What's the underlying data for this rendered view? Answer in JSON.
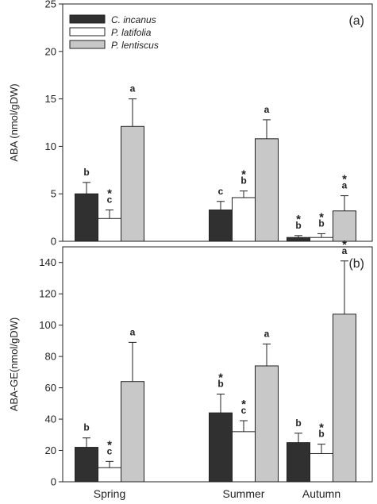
{
  "chart_data": [
    {
      "type": "bar",
      "panel_label": "(a)",
      "ylabel": "ABA (nmol/gDW)",
      "ylim": [
        0,
        25
      ],
      "yticks": [
        0,
        5,
        10,
        15,
        20,
        25
      ],
      "categories": [
        "Spring",
        "Summer",
        "Autumn"
      ],
      "show_category_labels": false,
      "legend": "top-left",
      "series": [
        {
          "name": "C. incanus",
          "color": "#303030",
          "values": [
            5.0,
            3.3,
            0.4
          ],
          "errors": [
            1.2,
            0.9,
            0.2
          ],
          "letters": [
            "b",
            "c",
            "b"
          ],
          "stars": [
            false,
            false,
            true
          ]
        },
        {
          "name": "P. latifolia",
          "color": "#ffffff",
          "values": [
            2.4,
            4.6,
            0.4
          ],
          "errors": [
            0.9,
            0.7,
            0.4
          ],
          "letters": [
            "c",
            "b",
            "b"
          ],
          "stars": [
            true,
            true,
            true
          ]
        },
        {
          "name": "P. lentiscus",
          "color": "#c8c8c8",
          "values": [
            12.1,
            10.8,
            3.2
          ],
          "errors": [
            2.9,
            2.0,
            1.6
          ],
          "letters": [
            "a",
            "a",
            "a"
          ],
          "stars": [
            false,
            false,
            true
          ]
        }
      ]
    },
    {
      "type": "bar",
      "panel_label": "(b)",
      "ylabel": "ABA-GE(nmol/gDW)",
      "ylim": [
        0,
        150
      ],
      "yticks": [
        0,
        20,
        40,
        60,
        80,
        100,
        120,
        140
      ],
      "categories": [
        "Spring",
        "Summer",
        "Autumn"
      ],
      "show_category_labels": true,
      "series": [
        {
          "name": "C. incanus",
          "color": "#303030",
          "values": [
            22,
            44,
            25
          ],
          "errors": [
            6,
            12,
            6
          ],
          "letters": [
            "b",
            "b",
            "b"
          ],
          "stars": [
            false,
            true,
            false
          ]
        },
        {
          "name": "P. latifolia",
          "color": "#ffffff",
          "values": [
            9,
            32,
            18
          ],
          "errors": [
            4,
            7,
            6
          ],
          "letters": [
            "c",
            "c",
            "b"
          ],
          "stars": [
            true,
            true,
            true
          ]
        },
        {
          "name": "P. lentiscus",
          "color": "#c8c8c8",
          "values": [
            64,
            74,
            107
          ],
          "errors": [
            25,
            14,
            34
          ],
          "letters": [
            "a",
            "a",
            "a"
          ],
          "stars": [
            false,
            false,
            true
          ]
        }
      ]
    }
  ]
}
